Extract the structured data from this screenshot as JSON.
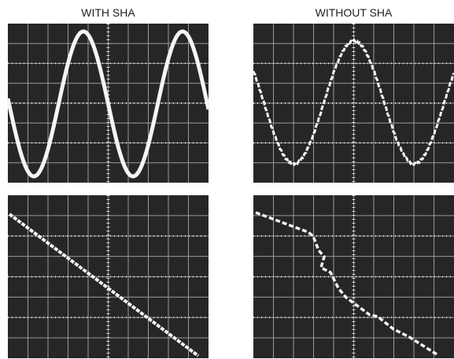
{
  "labels": {
    "left": "WITH SHA",
    "right": "WITHOUT SHA"
  }
}
